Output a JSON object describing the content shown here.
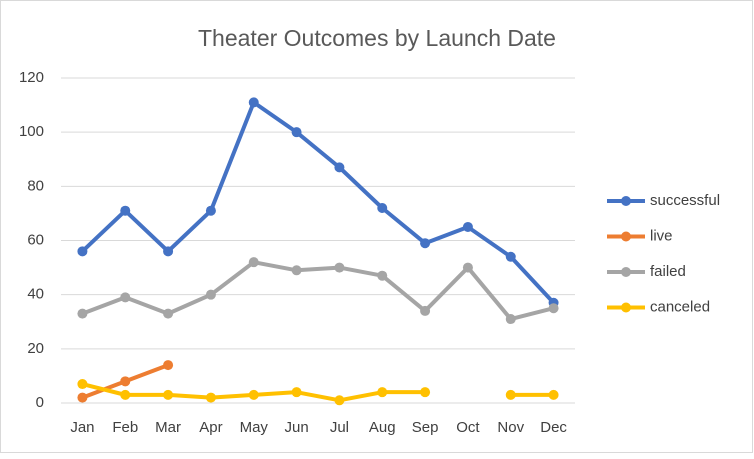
{
  "chart_data": {
    "type": "line",
    "title": "Theater Outcomes by Launch Date",
    "categories": [
      "Jan",
      "Feb",
      "Mar",
      "Apr",
      "May",
      "Jun",
      "Jul",
      "Aug",
      "Sep",
      "Oct",
      "Nov",
      "Dec"
    ],
    "series": [
      {
        "name": "successful",
        "color": "#4472c4",
        "values": [
          56,
          71,
          56,
          71,
          111,
          100,
          87,
          72,
          59,
          65,
          54,
          37
        ]
      },
      {
        "name": "live",
        "color": "#ed7d31",
        "values": [
          2,
          8,
          14,
          null,
          null,
          null,
          null,
          null,
          null,
          null,
          null,
          null
        ]
      },
      {
        "name": "failed",
        "color": "#a5a5a5",
        "values": [
          33,
          39,
          33,
          40,
          52,
          49,
          50,
          47,
          34,
          50,
          31,
          35
        ]
      },
      {
        "name": "canceled",
        "color": "#ffc000",
        "values": [
          7,
          3,
          3,
          2,
          3,
          4,
          1,
          4,
          4,
          null,
          3,
          3
        ]
      }
    ],
    "ylim": [
      0,
      120
    ],
    "yticks": [
      0,
      20,
      40,
      60,
      80,
      100,
      120
    ],
    "grid": true,
    "legend": "right"
  }
}
